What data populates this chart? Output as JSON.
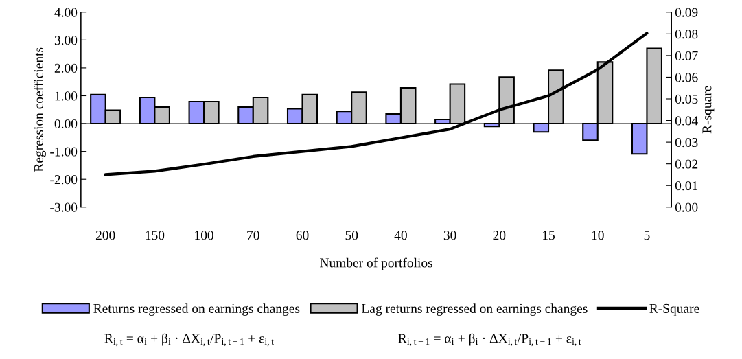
{
  "chart_data": {
    "type": "bar",
    "categories": [
      "200",
      "150",
      "100",
      "70",
      "60",
      "50",
      "40",
      "30",
      "20",
      "15",
      "10",
      "5"
    ],
    "xlabel": "Number of portfolios",
    "ylabel": "Regression coefficients",
    "y2label": "R-square",
    "series": [
      {
        "name": "Returns regressed on earnings changes",
        "color": "#9999ff",
        "values": [
          1.04,
          0.94,
          0.79,
          0.59,
          0.53,
          0.44,
          0.35,
          0.15,
          -0.1,
          -0.3,
          -0.6,
          -1.09
        ]
      },
      {
        "name": "Lag returns regressed on earnings changes",
        "color": "#c0c0c0",
        "values": [
          0.48,
          0.59,
          0.79,
          0.94,
          1.04,
          1.13,
          1.28,
          1.42,
          1.67,
          1.92,
          2.21,
          2.7
        ]
      },
      {
        "name": "R-Square",
        "type": "line",
        "axis": "y2",
        "color": "#000000",
        "values": [
          0.015,
          0.0166,
          0.0198,
          0.0234,
          0.0257,
          0.028,
          0.032,
          0.036,
          0.0449,
          0.0514,
          0.0635,
          0.0803
        ]
      }
    ],
    "ylim": [
      -3,
      4
    ],
    "yticks": [
      {
        "value": -3,
        "label": "-3.00"
      },
      {
        "value": -2,
        "label": "-2.00"
      },
      {
        "value": -1,
        "label": "-1.00"
      },
      {
        "value": 0,
        "label": "0.00"
      },
      {
        "value": 1,
        "label": "1.00"
      },
      {
        "value": 2,
        "label": "2.00"
      },
      {
        "value": 3,
        "label": "3.00"
      },
      {
        "value": 4,
        "label": "4.00"
      }
    ],
    "y2lim": [
      0,
      0.09
    ],
    "y2ticks": [
      {
        "value": 0,
        "label": "0.00"
      },
      {
        "value": 0.01,
        "label": "0.01"
      },
      {
        "value": 0.02,
        "label": "0.02"
      },
      {
        "value": 0.03,
        "label": "0.03"
      },
      {
        "value": 0.04,
        "label": "0.04"
      },
      {
        "value": 0.05,
        "label": "0.05"
      },
      {
        "value": 0.06,
        "label": "0.06"
      },
      {
        "value": 0.07,
        "label": "0.07"
      },
      {
        "value": 0.08,
        "label": "0.08"
      },
      {
        "value": 0.09,
        "label": "0.09"
      }
    ],
    "legend": "bottom",
    "annotations": [
      "R$_{i,t}$ = α$_{i}$ + β$_{i}$ · ΔX$_{i,t}$/P$_{i,t−1}$ + ε$_{i,t}$",
      "R$_{i,t−1}$ = α$_{i}$ + β$_{i}$ · ΔX$_{i,t}$/P$_{i,t−1}$ + ε$_{i,t}$"
    ]
  }
}
